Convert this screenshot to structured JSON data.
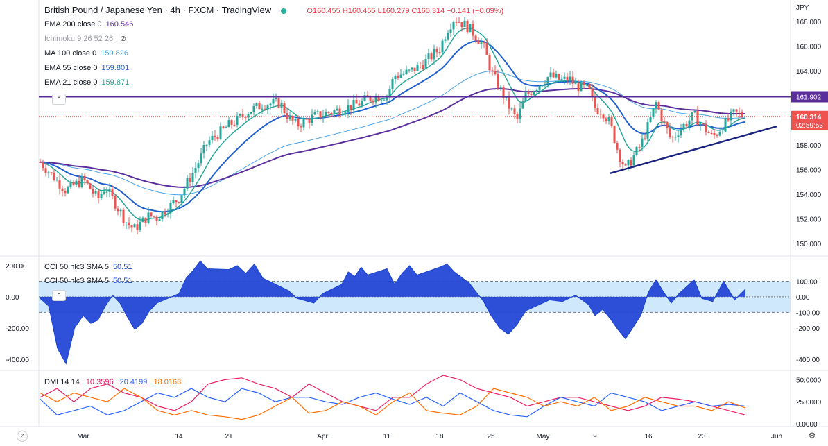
{
  "header": {
    "symbol": "British Pound / Japanese Yen",
    "interval": "4h",
    "source": "FXCM",
    "platform": "TradingView",
    "ohlc": "O160.455 H160.455 L160.279 C160.314 −0.141 (−0.09%)"
  },
  "legends": {
    "ema200": {
      "label": "EMA 200 close 0",
      "value": "160.546",
      "color": "#5b2e9e"
    },
    "ichimoku": {
      "label": "Ichimoku 9 26 52 26",
      "value": "",
      "color": "#9a9da6"
    },
    "ma100": {
      "label": "MA 100 close 0",
      "value": "159.826",
      "color": "#4aa3e6"
    },
    "ema55": {
      "label": "EMA 55 close 0",
      "value": "159.801",
      "color": "#1f5fcf"
    },
    "ema21": {
      "label": "EMA 21 close 0",
      "value": "159.871",
      "color": "#26a59a"
    },
    "cci_top": {
      "label": "CCI 50 hlc3 SMA 5",
      "value": "50.51",
      "color": "#1a44cc"
    },
    "cci_bottom": {
      "label": "CCI 50 hlc3 SMA 5",
      "value": "50.51",
      "color": "#1a44cc"
    },
    "dmi": {
      "label": "DMI 14 14",
      "values": [
        "10.3596",
        "20.4199",
        "18.0163"
      ],
      "colors": [
        "#e91e63",
        "#2962ff",
        "#ff6d00"
      ]
    }
  },
  "price_axis": {
    "currency": "JPY",
    "ticks": [
      "168.000",
      "166.000",
      "164.000",
      "161.902",
      "160.314",
      "158.000",
      "156.000",
      "154.000",
      "152.000",
      "150.000"
    ],
    "current_price": "160.314",
    "countdown": "02:59:53",
    "resistance_label": "161.902"
  },
  "cci_axis": {
    "left_ticks": [
      "200.00",
      "0.00",
      "-200.00",
      "-400.00"
    ],
    "right_ticks": [
      "100.00",
      "0.00",
      "-100.00",
      "-200.00",
      "-400.00"
    ]
  },
  "dmi_axis": {
    "ticks": [
      "50.0000",
      "25.0000",
      "0.0000"
    ]
  },
  "time_axis": {
    "ticks": [
      "Mar",
      "14",
      "21",
      "Apr",
      "11",
      "18",
      "25",
      "May",
      "9",
      "16",
      "23",
      "Jun"
    ]
  },
  "icons": [
    "z-icon",
    "gear-icon",
    "eye-off-icon",
    "chevron-up-icon"
  ],
  "chart_data": [
    {
      "type": "candlestick",
      "title": "British Pound / Japanese Yen, 4h, FXCM",
      "price_range": [
        149.5,
        169.3
      ],
      "horizontal_line": 161.902,
      "trendline": {
        "from": [
          "May 11",
          155.7
        ],
        "to": [
          "Jun 1",
          159.5
        ]
      },
      "close_path": [
        [
          "Feb 24",
          156.6
        ],
        [
          "Feb 27",
          154.3
        ],
        [
          "Mar 1",
          155.2
        ],
        [
          "Mar 3",
          153.6
        ],
        [
          "Mar 4",
          154.6
        ],
        [
          "Mar 7",
          151.6
        ],
        [
          "Mar 8",
          151.2
        ],
        [
          "Mar 10",
          152.3
        ],
        [
          "Mar 11",
          152.1
        ],
        [
          "Mar 14",
          153.7
        ],
        [
          "Mar 16",
          155.8
        ],
        [
          "Mar 17",
          156.9
        ],
        [
          "Mar 18",
          158.2
        ],
        [
          "Mar 21",
          159.6
        ],
        [
          "Mar 22",
          160.0
        ],
        [
          "Mar 23",
          160.6
        ],
        [
          "Mar 25",
          161.3
        ],
        [
          "Mar 27",
          161.4
        ],
        [
          "Mar 28",
          160.2
        ],
        [
          "Mar 29",
          159.6
        ],
        [
          "Mar 31",
          160.3
        ],
        [
          "Apr 4",
          160.9
        ],
        [
          "Apr 7",
          161.4
        ],
        [
          "Apr 8",
          161.8
        ],
        [
          "Apr 11",
          162.0
        ],
        [
          "Apr 12",
          163.6
        ],
        [
          "Apr 14",
          163.9
        ],
        [
          "Apr 16",
          164.7
        ],
        [
          "Apr 18",
          165.8
        ],
        [
          "Apr 19",
          167.3
        ],
        [
          "Apr 20",
          168.3
        ],
        [
          "Apr 22",
          167.5
        ],
        [
          "Apr 24",
          166.0
        ],
        [
          "Apr 25",
          164.0
        ],
        [
          "Apr 27",
          161.2
        ],
        [
          "Apr 28",
          160.0
        ],
        [
          "Apr 29",
          162.0
        ],
        [
          "May 2",
          163.6
        ],
        [
          "May 4",
          163.2
        ],
        [
          "May 5",
          163.4
        ],
        [
          "May 6",
          162.8
        ],
        [
          "May 8",
          162.5
        ],
        [
          "May 9",
          161.0
        ],
        [
          "May 10",
          160.7
        ],
        [
          "May 11",
          159.7
        ],
        [
          "May 12",
          157.5
        ],
        [
          "May 13",
          156.0
        ],
        [
          "May 15",
          158.0
        ],
        [
          "May 16",
          159.6
        ],
        [
          "May 17",
          161.4
        ],
        [
          "May 18",
          159.8
        ],
        [
          "May 19",
          158.4
        ],
        [
          "May 20",
          159.2
        ],
        [
          "May 22",
          160.4
        ],
        [
          "May 23",
          159.6
        ],
        [
          "May 24",
          158.6
        ],
        [
          "May 26",
          160.6
        ],
        [
          "May 27",
          160.3
        ]
      ],
      "series": [
        {
          "name": "EMA 21 close 0",
          "last": 159.871
        },
        {
          "name": "EMA 55 close 0",
          "last": 159.801
        },
        {
          "name": "MA 100 close 0",
          "last": 159.826
        },
        {
          "name": "EMA 200 close 0",
          "last": 160.546
        }
      ]
    },
    {
      "type": "area",
      "title": "CCI 50 hlc3 SMA 5",
      "ylim": [
        -450,
        240
      ],
      "bands": [
        -100,
        100
      ],
      "last": 50.51,
      "path": [
        [
          "Feb 24",
          -10
        ],
        [
          "Feb 25",
          -60
        ],
        [
          "Feb 26",
          -330
        ],
        [
          "Feb 27",
          -430
        ],
        [
          "Feb 28",
          -200
        ],
        [
          "Mar 1",
          -120
        ],
        [
          "Mar 2",
          -170
        ],
        [
          "Mar 3",
          -150
        ],
        [
          "Mar 4",
          -60
        ],
        [
          "Mar 5",
          10
        ],
        [
          "Mar 6",
          -40
        ],
        [
          "Mar 7",
          -130
        ],
        [
          "Mar 8",
          -210
        ],
        [
          "Mar 9",
          -170
        ],
        [
          "Mar 10",
          -90
        ],
        [
          "Mar 11",
          -40
        ],
        [
          "Mar 12",
          -20
        ],
        [
          "Mar 14",
          20
        ],
        [
          "Mar 15",
          120
        ],
        [
          "Mar 16",
          170
        ],
        [
          "Mar 17",
          230
        ],
        [
          "Mar 18",
          180
        ],
        [
          "Mar 21",
          175
        ],
        [
          "Mar 22",
          200
        ],
        [
          "Mar 23",
          150
        ],
        [
          "Mar 24",
          210
        ],
        [
          "Mar 25",
          120
        ],
        [
          "Mar 28",
          40
        ],
        [
          "Mar 29",
          -10
        ],
        [
          "Mar 31",
          -40
        ],
        [
          "Apr 1",
          20
        ],
        [
          "Apr 4",
          80
        ],
        [
          "Apr 5",
          160
        ],
        [
          "Apr 6",
          130
        ],
        [
          "Apr 7",
          190
        ],
        [
          "Apr 8",
          140
        ],
        [
          "Apr 11",
          180
        ],
        [
          "Apr 12",
          80
        ],
        [
          "Apr 13",
          150
        ],
        [
          "Apr 14",
          200
        ],
        [
          "Apr 15",
          140
        ],
        [
          "Apr 18",
          190
        ],
        [
          "Apr 19",
          210
        ],
        [
          "Apr 20",
          160
        ],
        [
          "Apr 22",
          90
        ],
        [
          "Apr 24",
          -30
        ],
        [
          "Apr 25",
          -120
        ],
        [
          "Apr 26",
          -200
        ],
        [
          "Apr 27",
          -240
        ],
        [
          "Apr 28",
          -180
        ],
        [
          "Apr 29",
          -90
        ],
        [
          "May 2",
          -20
        ],
        [
          "May 4",
          -30
        ],
        [
          "May 5",
          -10
        ],
        [
          "May 6",
          10
        ],
        [
          "May 8",
          -50
        ],
        [
          "May 9",
          -120
        ],
        [
          "May 10",
          -80
        ],
        [
          "May 11",
          -140
        ],
        [
          "May 12",
          -210
        ],
        [
          "May 13",
          -270
        ],
        [
          "May 15",
          -120
        ],
        [
          "May 16",
          30
        ],
        [
          "May 17",
          110
        ],
        [
          "May 18",
          30
        ],
        [
          "May 19",
          -40
        ],
        [
          "May 20",
          20
        ],
        [
          "May 22",
          110
        ],
        [
          "May 23",
          -10
        ],
        [
          "May 24",
          -30
        ],
        [
          "May 25",
          100
        ],
        [
          "May 26",
          -20
        ],
        [
          "May 27",
          50
        ]
      ]
    },
    {
      "type": "line",
      "title": "DMI 14 14",
      "ylim": [
        0,
        55
      ],
      "series": [
        {
          "name": "ADX",
          "last": 10.3596,
          "values": [
            30,
            40,
            25,
            40,
            45,
            35,
            30,
            20,
            15,
            25,
            45,
            50,
            52,
            45,
            40,
            30,
            45,
            35,
            25,
            20,
            15,
            30,
            30,
            45,
            55,
            50,
            40,
            35,
            30,
            20,
            25,
            30,
            30,
            25,
            20,
            15,
            20,
            30,
            28,
            25,
            20,
            15,
            10
          ]
        },
        {
          "name": "+DI",
          "last": 20.4199,
          "values": [
            28,
            10,
            15,
            20,
            10,
            15,
            25,
            35,
            30,
            40,
            30,
            25,
            40,
            35,
            25,
            30,
            30,
            25,
            22,
            30,
            35,
            28,
            22,
            30,
            20,
            35,
            25,
            15,
            10,
            8,
            20,
            30,
            25,
            20,
            35,
            30,
            25,
            15,
            20,
            25,
            20,
            22,
            20
          ]
        },
        {
          "name": "-DI",
          "last": 18.0163,
          "values": [
            35,
            25,
            35,
            30,
            25,
            40,
            30,
            15,
            10,
            15,
            10,
            8,
            5,
            10,
            20,
            30,
            12,
            15,
            25,
            20,
            10,
            25,
            35,
            15,
            12,
            10,
            20,
            40,
            35,
            30,
            20,
            25,
            20,
            30,
            15,
            20,
            30,
            25,
            20,
            20,
            15,
            25,
            18
          ]
        }
      ]
    }
  ]
}
